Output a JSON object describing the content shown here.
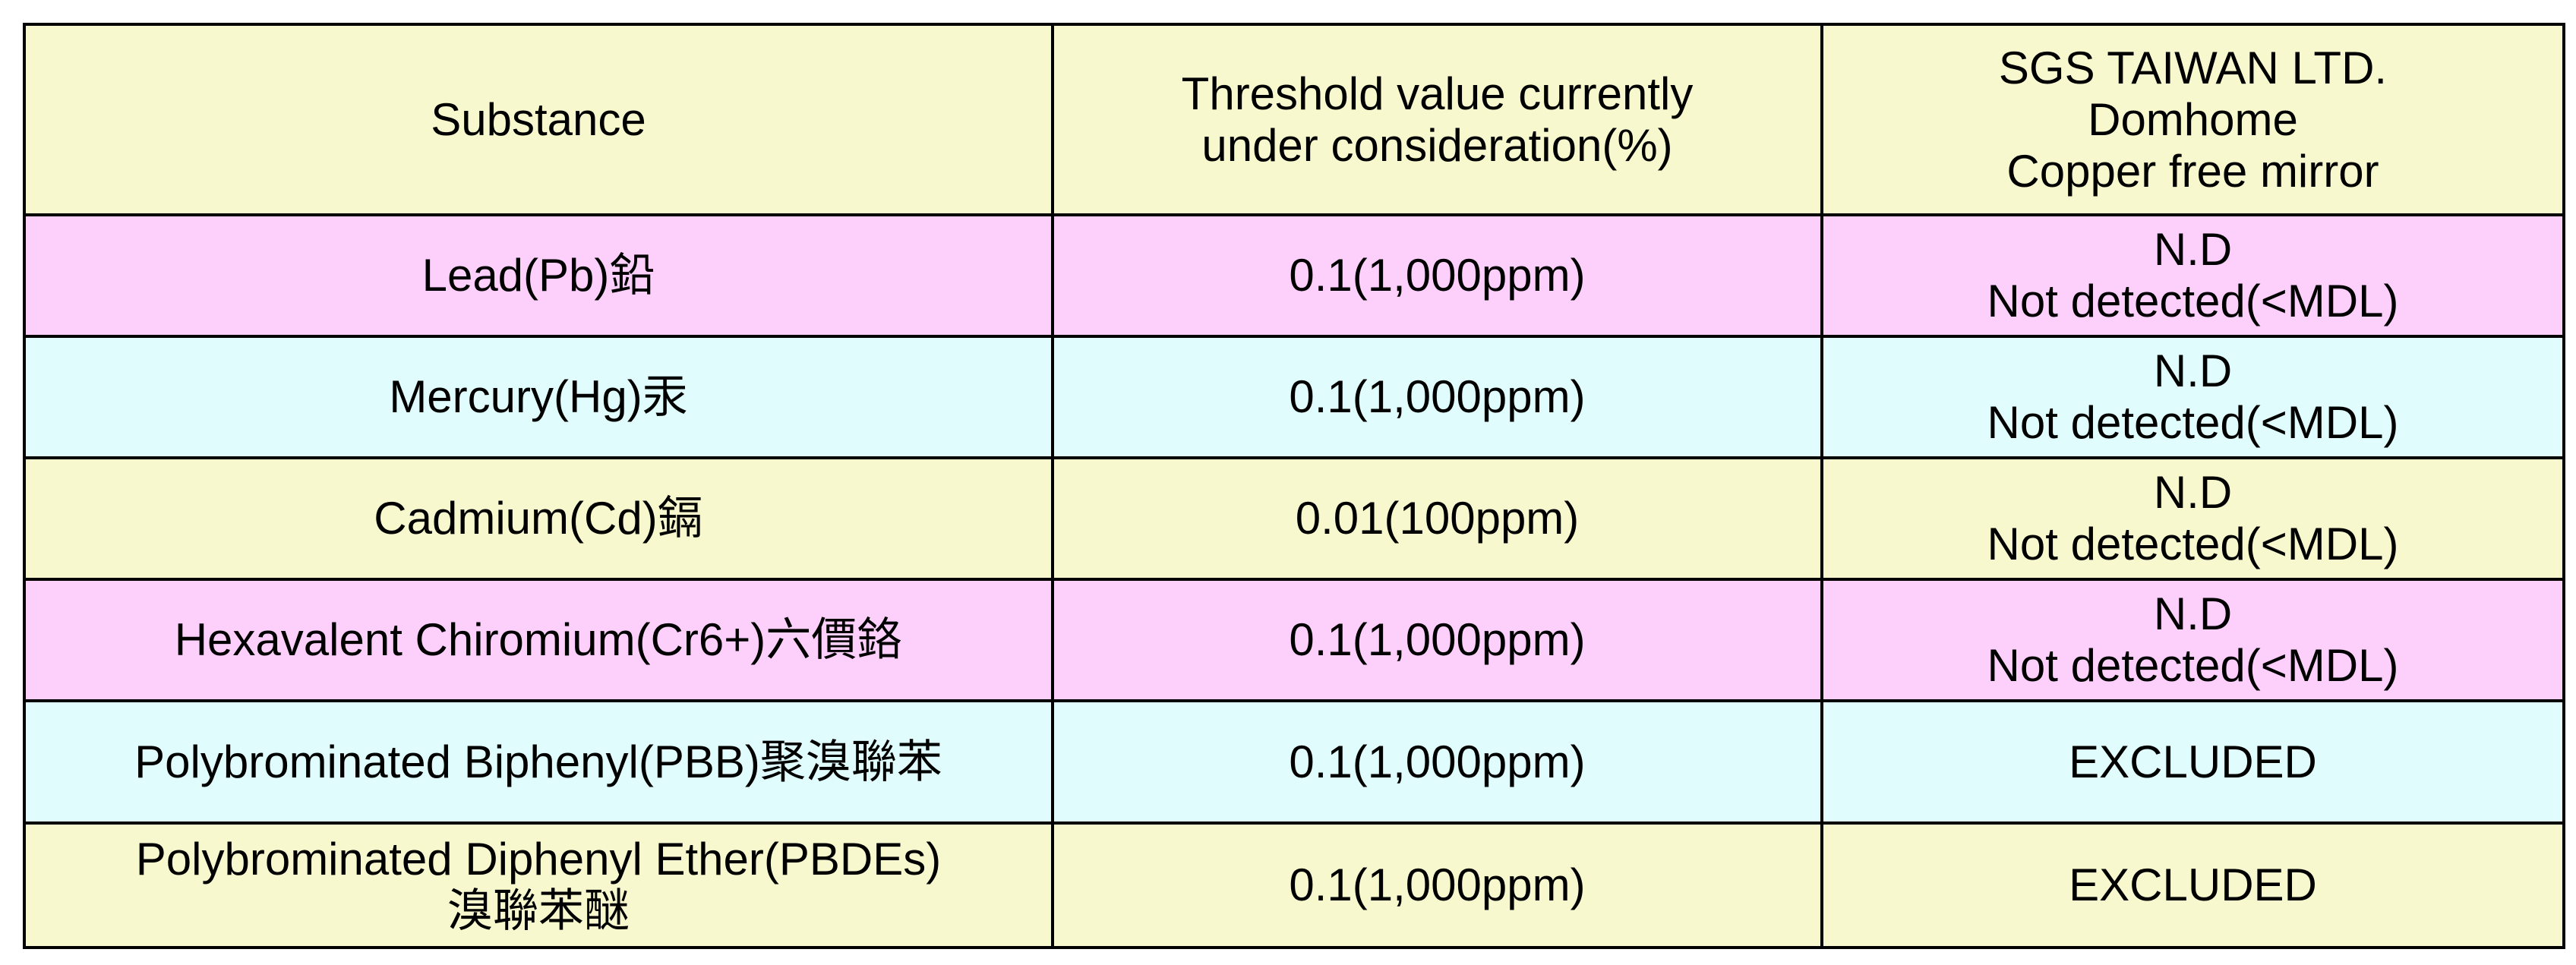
{
  "table": {
    "header": [
      [
        "Substance"
      ],
      [
        "Threshold value currently",
        "under consideration(%)"
      ],
      [
        "SGS TAIWAN LTD.",
        "Domhome",
        "Copper free mirror"
      ]
    ],
    "rows": [
      [
        [
          "Lead(Pb)鉛"
        ],
        [
          "0.1(1,000ppm)"
        ],
        [
          "N.D",
          "Not detected(<MDL)"
        ]
      ],
      [
        [
          "Mercury(Hg)汞"
        ],
        [
          "0.1(1,000ppm)"
        ],
        [
          "N.D",
          "Not detected(<MDL)"
        ]
      ],
      [
        [
          "Cadmium(Cd)鎘"
        ],
        [
          "0.01(100ppm)"
        ],
        [
          "N.D",
          "Not detected(<MDL)"
        ]
      ],
      [
        [
          "Hexavalent Chiromium(Cr6+)六價鉻"
        ],
        [
          "0.1(1,000ppm)"
        ],
        [
          "N.D",
          "Not detected(<MDL)"
        ]
      ],
      [
        [
          "Polybrominated Biphenyl(PBB)聚溴聯苯"
        ],
        [
          "0.1(1,000ppm)"
        ],
        [
          "EXCLUDED"
        ]
      ],
      [
        [
          "Polybrominated Diphenyl Ether(PBDEs)",
          "溴聯苯醚"
        ],
        [
          "0.1(1,000ppm)"
        ],
        [
          "EXCLUDED"
        ]
      ]
    ]
  }
}
